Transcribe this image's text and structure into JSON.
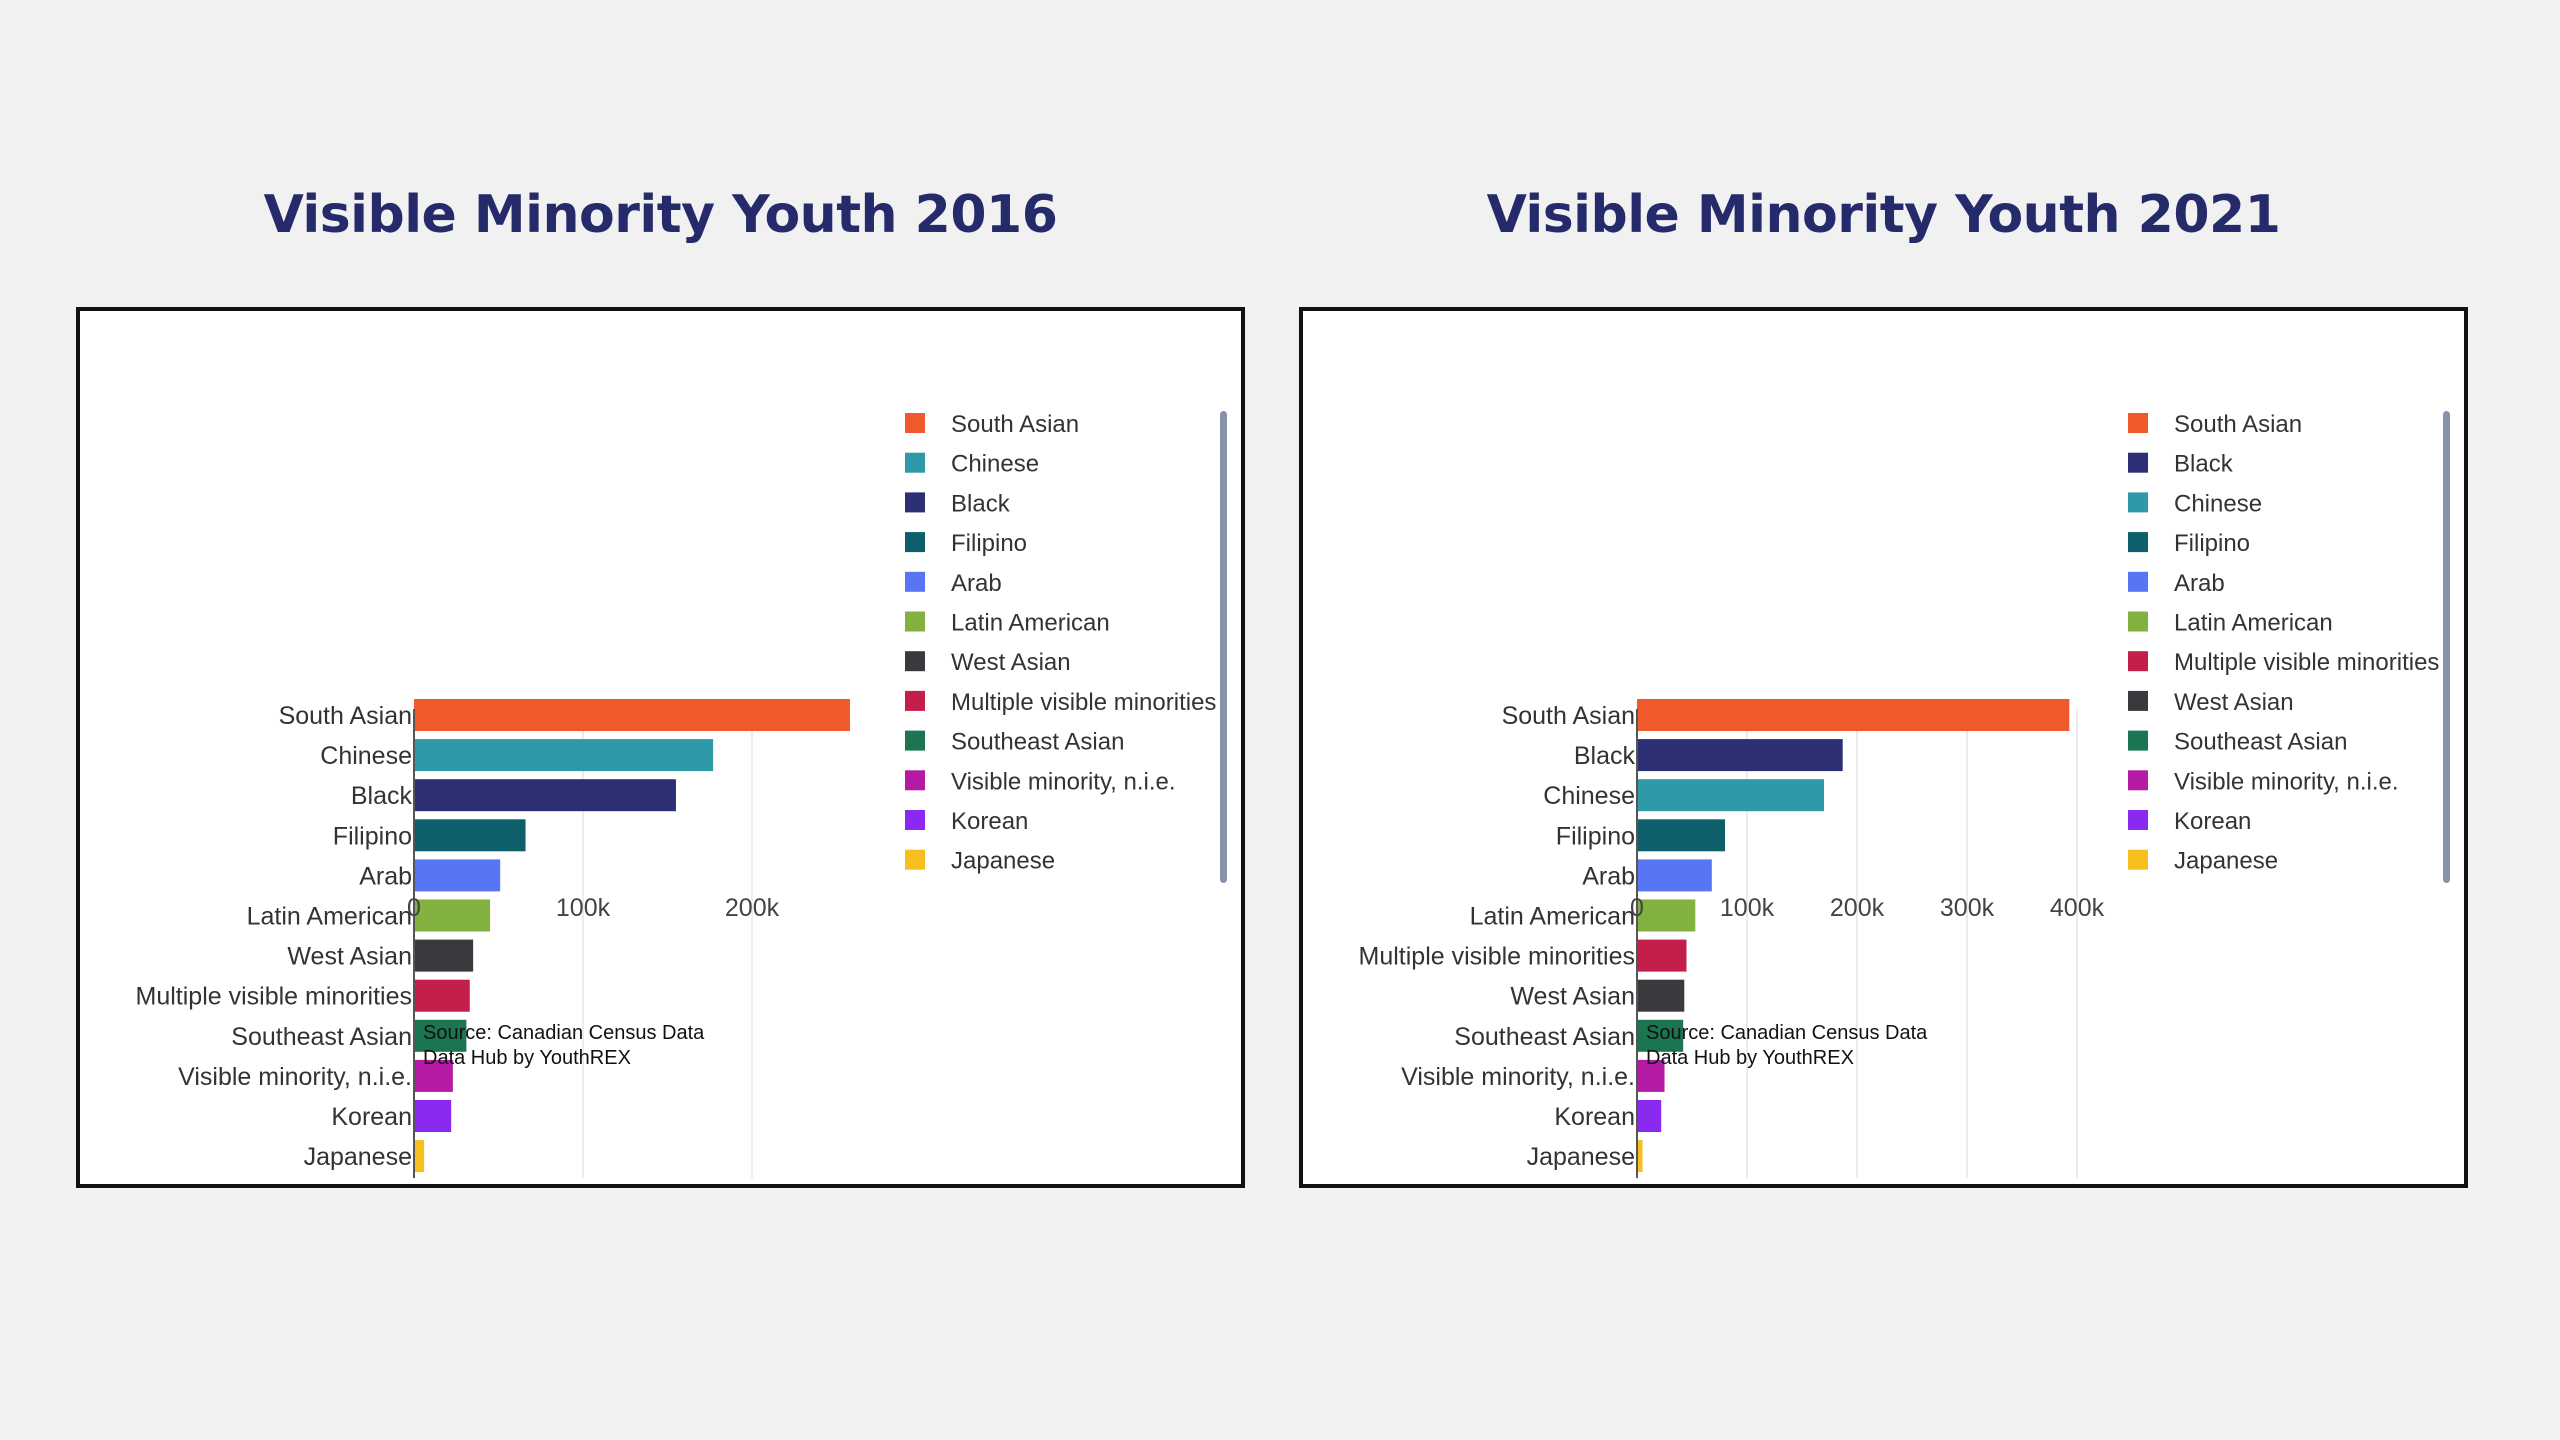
{
  "colors": {
    "title": "#252a6b",
    "South Asian": "#ee5a2b",
    "Chinese": "#2e9aa8",
    "Black": "#2c2f73",
    "Filipino": "#0d5f6b",
    "Arab": "#5876f3",
    "Latin American": "#82b140",
    "West Asian": "#3a3a3e",
    "Multiple visible minorities": "#c41f4b",
    "Southeast Asian": "#1c7551",
    "Visible minority, n.i.e.": "#b51aa4",
    "Korean": "#8a2af0",
    "Japanese": "#f6bf1e",
    "scrollbar": "#8592a9",
    "grid": "#e6e6e6"
  },
  "chart_data": [
    {
      "type": "bar",
      "orientation": "horizontal",
      "title": "Visible Minority Youth 2016",
      "categories": [
        "South Asian",
        "Chinese",
        "Black",
        "Filipino",
        "Arab",
        "Latin American",
        "West Asian",
        "Multiple visible minorities",
        "Southeast Asian",
        "Visible minority, n.i.e.",
        "Korean",
        "Japanese"
      ],
      "values": [
        258000,
        177000,
        155000,
        66000,
        51000,
        45000,
        35000,
        33000,
        31000,
        23000,
        22000,
        6000
      ],
      "xlim": [
        0,
        250000
      ],
      "x_ticks": [
        0,
        100000,
        200000
      ],
      "x_tick_labels": [
        "0",
        "100k",
        "200k"
      ],
      "legend": [
        "South Asian",
        "Chinese",
        "Black",
        "Filipino",
        "Arab",
        "Latin American",
        "West Asian",
        "Multiple visible minorities",
        "Southeast Asian",
        "Visible minority, n.i.e.",
        "Korean",
        "Japanese"
      ],
      "legend_position": "right",
      "grid": true,
      "source_lines": [
        "Source: Canadian Census Data",
        "Data Hub by YouthREX"
      ]
    },
    {
      "type": "bar",
      "orientation": "horizontal",
      "title": "Visible Minority Youth 2021",
      "categories": [
        "South Asian",
        "Black",
        "Chinese",
        "Filipino",
        "Arab",
        "Latin American",
        "Multiple visible minorities",
        "West Asian",
        "Southeast Asian",
        "Visible minority, n.i.e.",
        "Korean",
        "Japanese"
      ],
      "values": [
        393000,
        187000,
        170000,
        80000,
        68000,
        53000,
        45000,
        43000,
        42000,
        25000,
        22000,
        5000
      ],
      "xlim": [
        0,
        400000
      ],
      "x_ticks": [
        0,
        100000,
        200000,
        300000,
        400000
      ],
      "x_tick_labels": [
        "0",
        "100k",
        "200k",
        "300k",
        "400k"
      ],
      "legend": [
        "South Asian",
        "Black",
        "Chinese",
        "Filipino",
        "Arab",
        "Latin American",
        "Multiple visible minorities",
        "West Asian",
        "Southeast Asian",
        "Visible minority, n.i.e.",
        "Korean",
        "Japanese"
      ],
      "legend_position": "right",
      "grid": true,
      "source_lines": [
        "Source: Canadian Census Data",
        "Data Hub by YouthREX"
      ]
    }
  ]
}
